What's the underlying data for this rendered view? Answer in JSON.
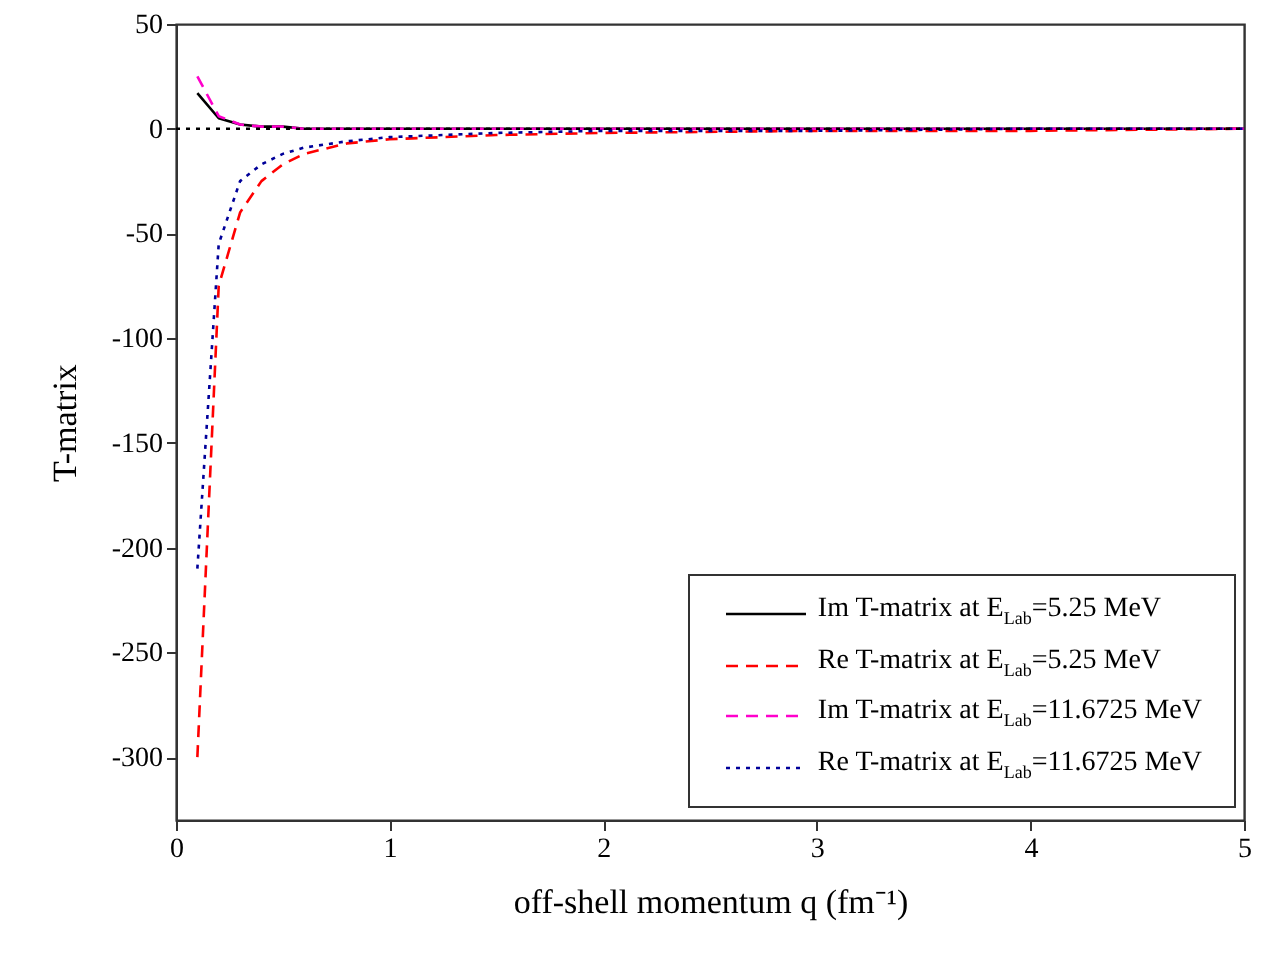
{
  "chart_data": {
    "type": "line",
    "xlabel": "off-shell momentum q (fm⁻¹)",
    "ylabel": "T-matrix",
    "x": [
      0.1,
      0.2,
      0.3,
      0.4,
      0.5,
      0.6,
      0.8,
      1.0,
      1.5,
      2.0,
      3.0,
      4.0,
      5.0
    ],
    "series": [
      {
        "name": "Im T-matrix at E$_{Lab}$=5.25 MeV",
        "color": "#000000",
        "line_style": "solid",
        "values": [
          17,
          5,
          2,
          1,
          1,
          0,
          0,
          0,
          0,
          0,
          0,
          0,
          0
        ]
      },
      {
        "name": "Re T-matrix at E$_{Lab}$=5.25 MeV",
        "color": "#ff0000",
        "line_style": "dashed",
        "values": [
          -300,
          -75,
          -40,
          -25,
          -17,
          -12,
          -7,
          -5,
          -3,
          -2,
          -1,
          -1,
          0
        ]
      },
      {
        "name": "Im T-matrix at E$_{Lab}$=11.6725 MeV",
        "color": "#ff00cc",
        "line_style": "dashed",
        "values": [
          25,
          6,
          2,
          1,
          1,
          0,
          0,
          0,
          0,
          0,
          0,
          0,
          0
        ]
      },
      {
        "name": "Re T-matrix at E$_{Lab}$=11.6725 MeV",
        "color": "#000099",
        "line_style": "dotted",
        "values": [
          -210,
          -55,
          -25,
          -17,
          -12,
          -9,
          -6,
          -4,
          -2,
          -1,
          -1,
          0,
          0
        ]
      }
    ],
    "xlim": [
      0,
      5
    ],
    "xticks": [
      0,
      1,
      2,
      3,
      4,
      5
    ],
    "ylim": [
      -330,
      50
    ],
    "yticks": [
      -300,
      -250,
      -200,
      -150,
      -100,
      -50,
      0,
      50
    ],
    "ref_lines": [
      {
        "axis": "y",
        "value": 0,
        "line_style": "dotted",
        "color": "#000000"
      }
    ],
    "legend": "bottom right",
    "grid": false
  }
}
